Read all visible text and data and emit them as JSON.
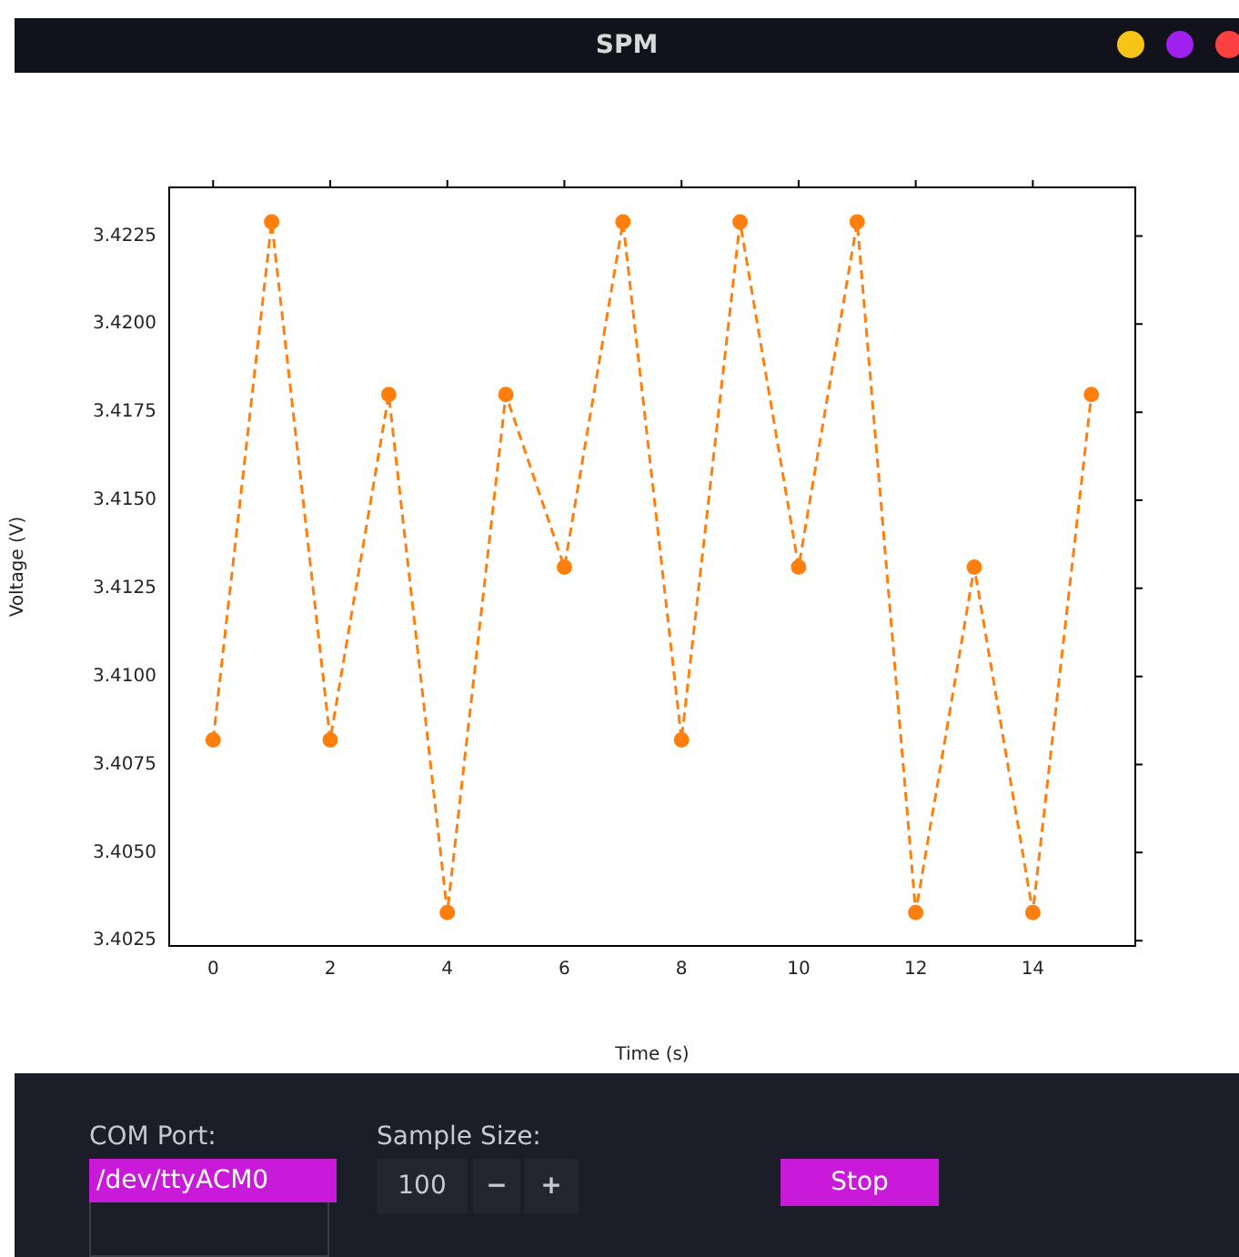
{
  "chart_data": {
    "type": "line",
    "title": "SPM",
    "xlabel": "Time (s)",
    "ylabel": "Voltage (V)",
    "x": [
      0,
      1,
      2,
      3,
      4,
      5,
      6,
      7,
      8,
      9,
      10,
      11,
      12,
      13,
      14,
      15
    ],
    "series": [
      {
        "color": "#ff7f0e",
        "values": [
          3.4082,
          3.4229,
          3.4082,
          3.418,
          3.4033,
          3.418,
          3.4131,
          3.4229,
          3.4082,
          3.4229,
          3.4131,
          3.4229,
          3.4033,
          3.4131,
          3.4033,
          3.418
        ]
      }
    ],
    "xlim": [
      -0.75,
      15.75
    ],
    "ylim": [
      3.40235,
      3.42388
    ],
    "xticks": [
      0,
      2,
      4,
      6,
      8,
      10,
      12,
      14
    ],
    "yticks": [
      3.4025,
      {
        "value": 3.405,
        "label": "3.4050"
      },
      3.4075,
      {
        "value": 3.41,
        "label": "3.4100"
      },
      3.4125,
      {
        "value": 3.415,
        "label": "3.4150"
      },
      3.4175,
      {
        "value": 3.42,
        "label": "3.4200"
      },
      3.4225
    ],
    "grid": false,
    "legend": false,
    "marker": "circle",
    "line_style": "dashed",
    "annotations": [
      "COM Port:",
      "/dev/ttyACM0",
      "Sample Size:",
      "100",
      "−",
      "+",
      "Stop"
    ]
  }
}
